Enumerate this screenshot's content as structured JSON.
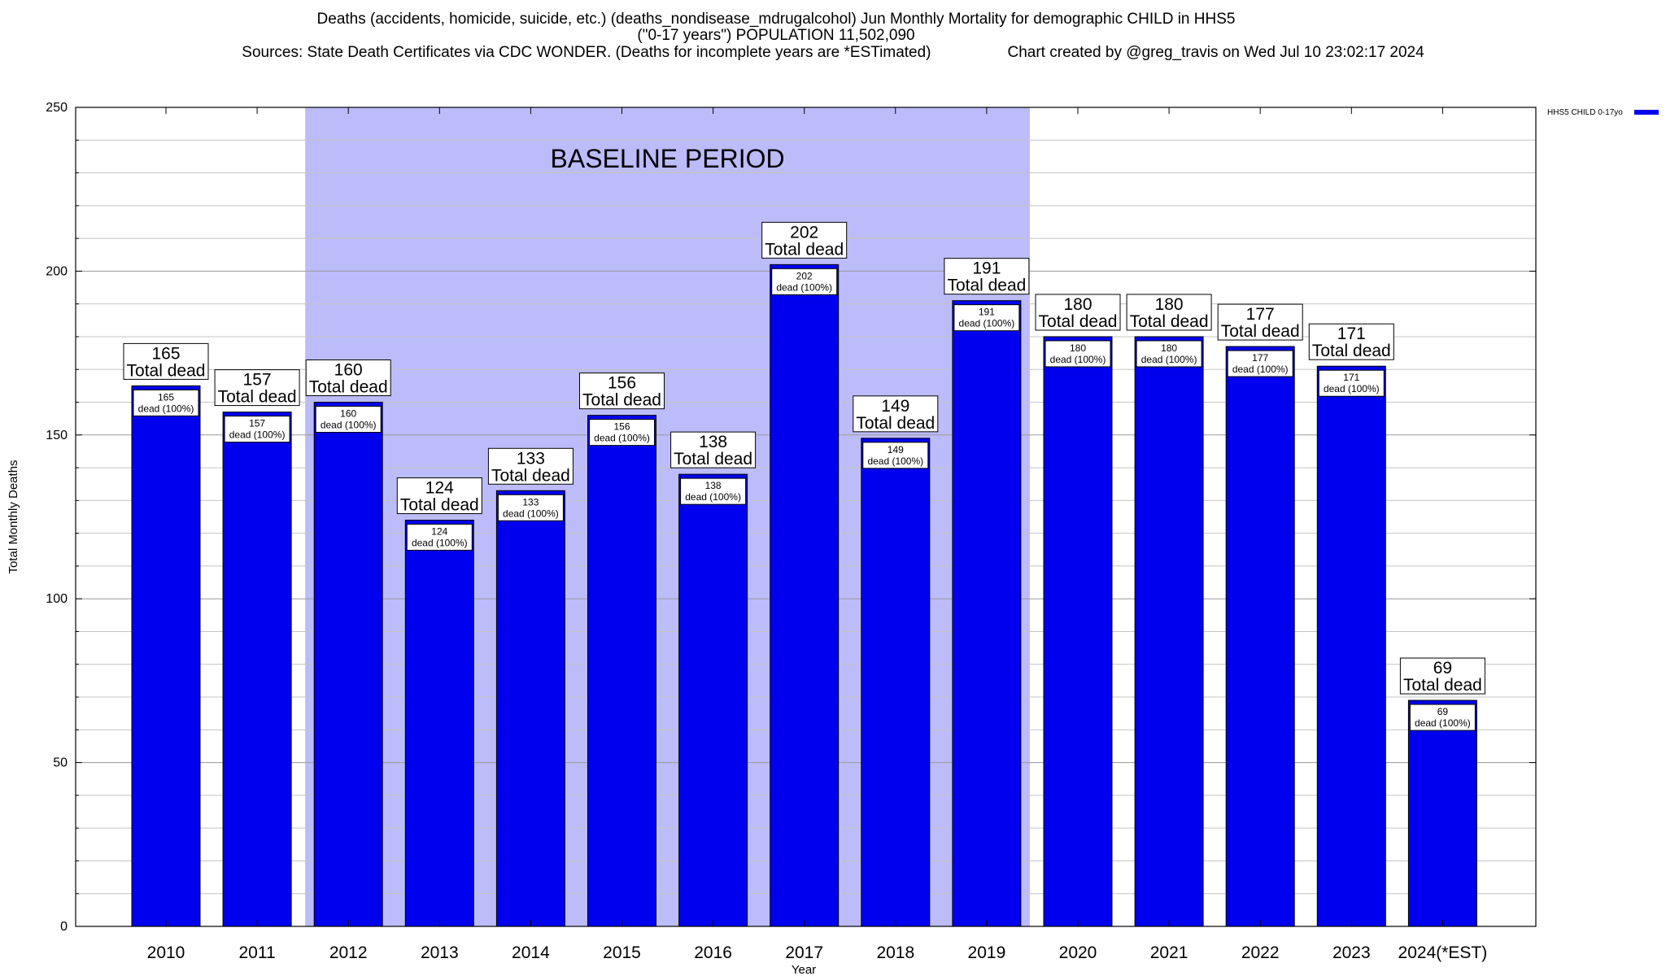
{
  "header": {
    "title_line1": "Deaths (accidents, homicide, suicide, etc.) (deaths_nondisease_mdrugalcohol) Jun Monthly Mortality for demographic CHILD in HHS5",
    "title_line2": "(\"0-17 years\") POPULATION 11,502,090",
    "sources": "Sources: State Death Certificates via CDC WONDER. (Deaths for incomplete years are *ESTimated)",
    "credit": "Chart created by @greg_travis on Wed Jul 10 23:02:17 2024"
  },
  "chart_data": {
    "type": "bar",
    "title": "Deaths (accidents, homicide, suicide, etc.) (deaths_nondisease_mdrugalcohol) Jun Monthly Mortality for demographic CHILD in HHS5",
    "xlabel": "Year",
    "ylabel": "Total Monthly Deaths",
    "ylim": [
      0,
      250
    ],
    "yticks": [
      0,
      50,
      100,
      150,
      200,
      250
    ],
    "grid": true,
    "categories": [
      "2010",
      "2011",
      "2012",
      "2013",
      "2014",
      "2015",
      "2016",
      "2017",
      "2018",
      "2019",
      "2020",
      "2021",
      "2022",
      "2023",
      "2024(*EST)"
    ],
    "series": [
      {
        "name": "HHS5 CHILD 0-17yo",
        "color": "#0000ee",
        "values": [
          165,
          157,
          160,
          124,
          133,
          156,
          138,
          202,
          149,
          191,
          180,
          180,
          177,
          171,
          69
        ]
      }
    ],
    "total_label_suffix": "Total dead",
    "inner_label_suffix": "dead (100%)",
    "baseline": {
      "label": "BASELINE PERIOD",
      "start": "2012",
      "end": "2019",
      "color": "#bcbcfb"
    },
    "legend_placement": "top-right"
  }
}
